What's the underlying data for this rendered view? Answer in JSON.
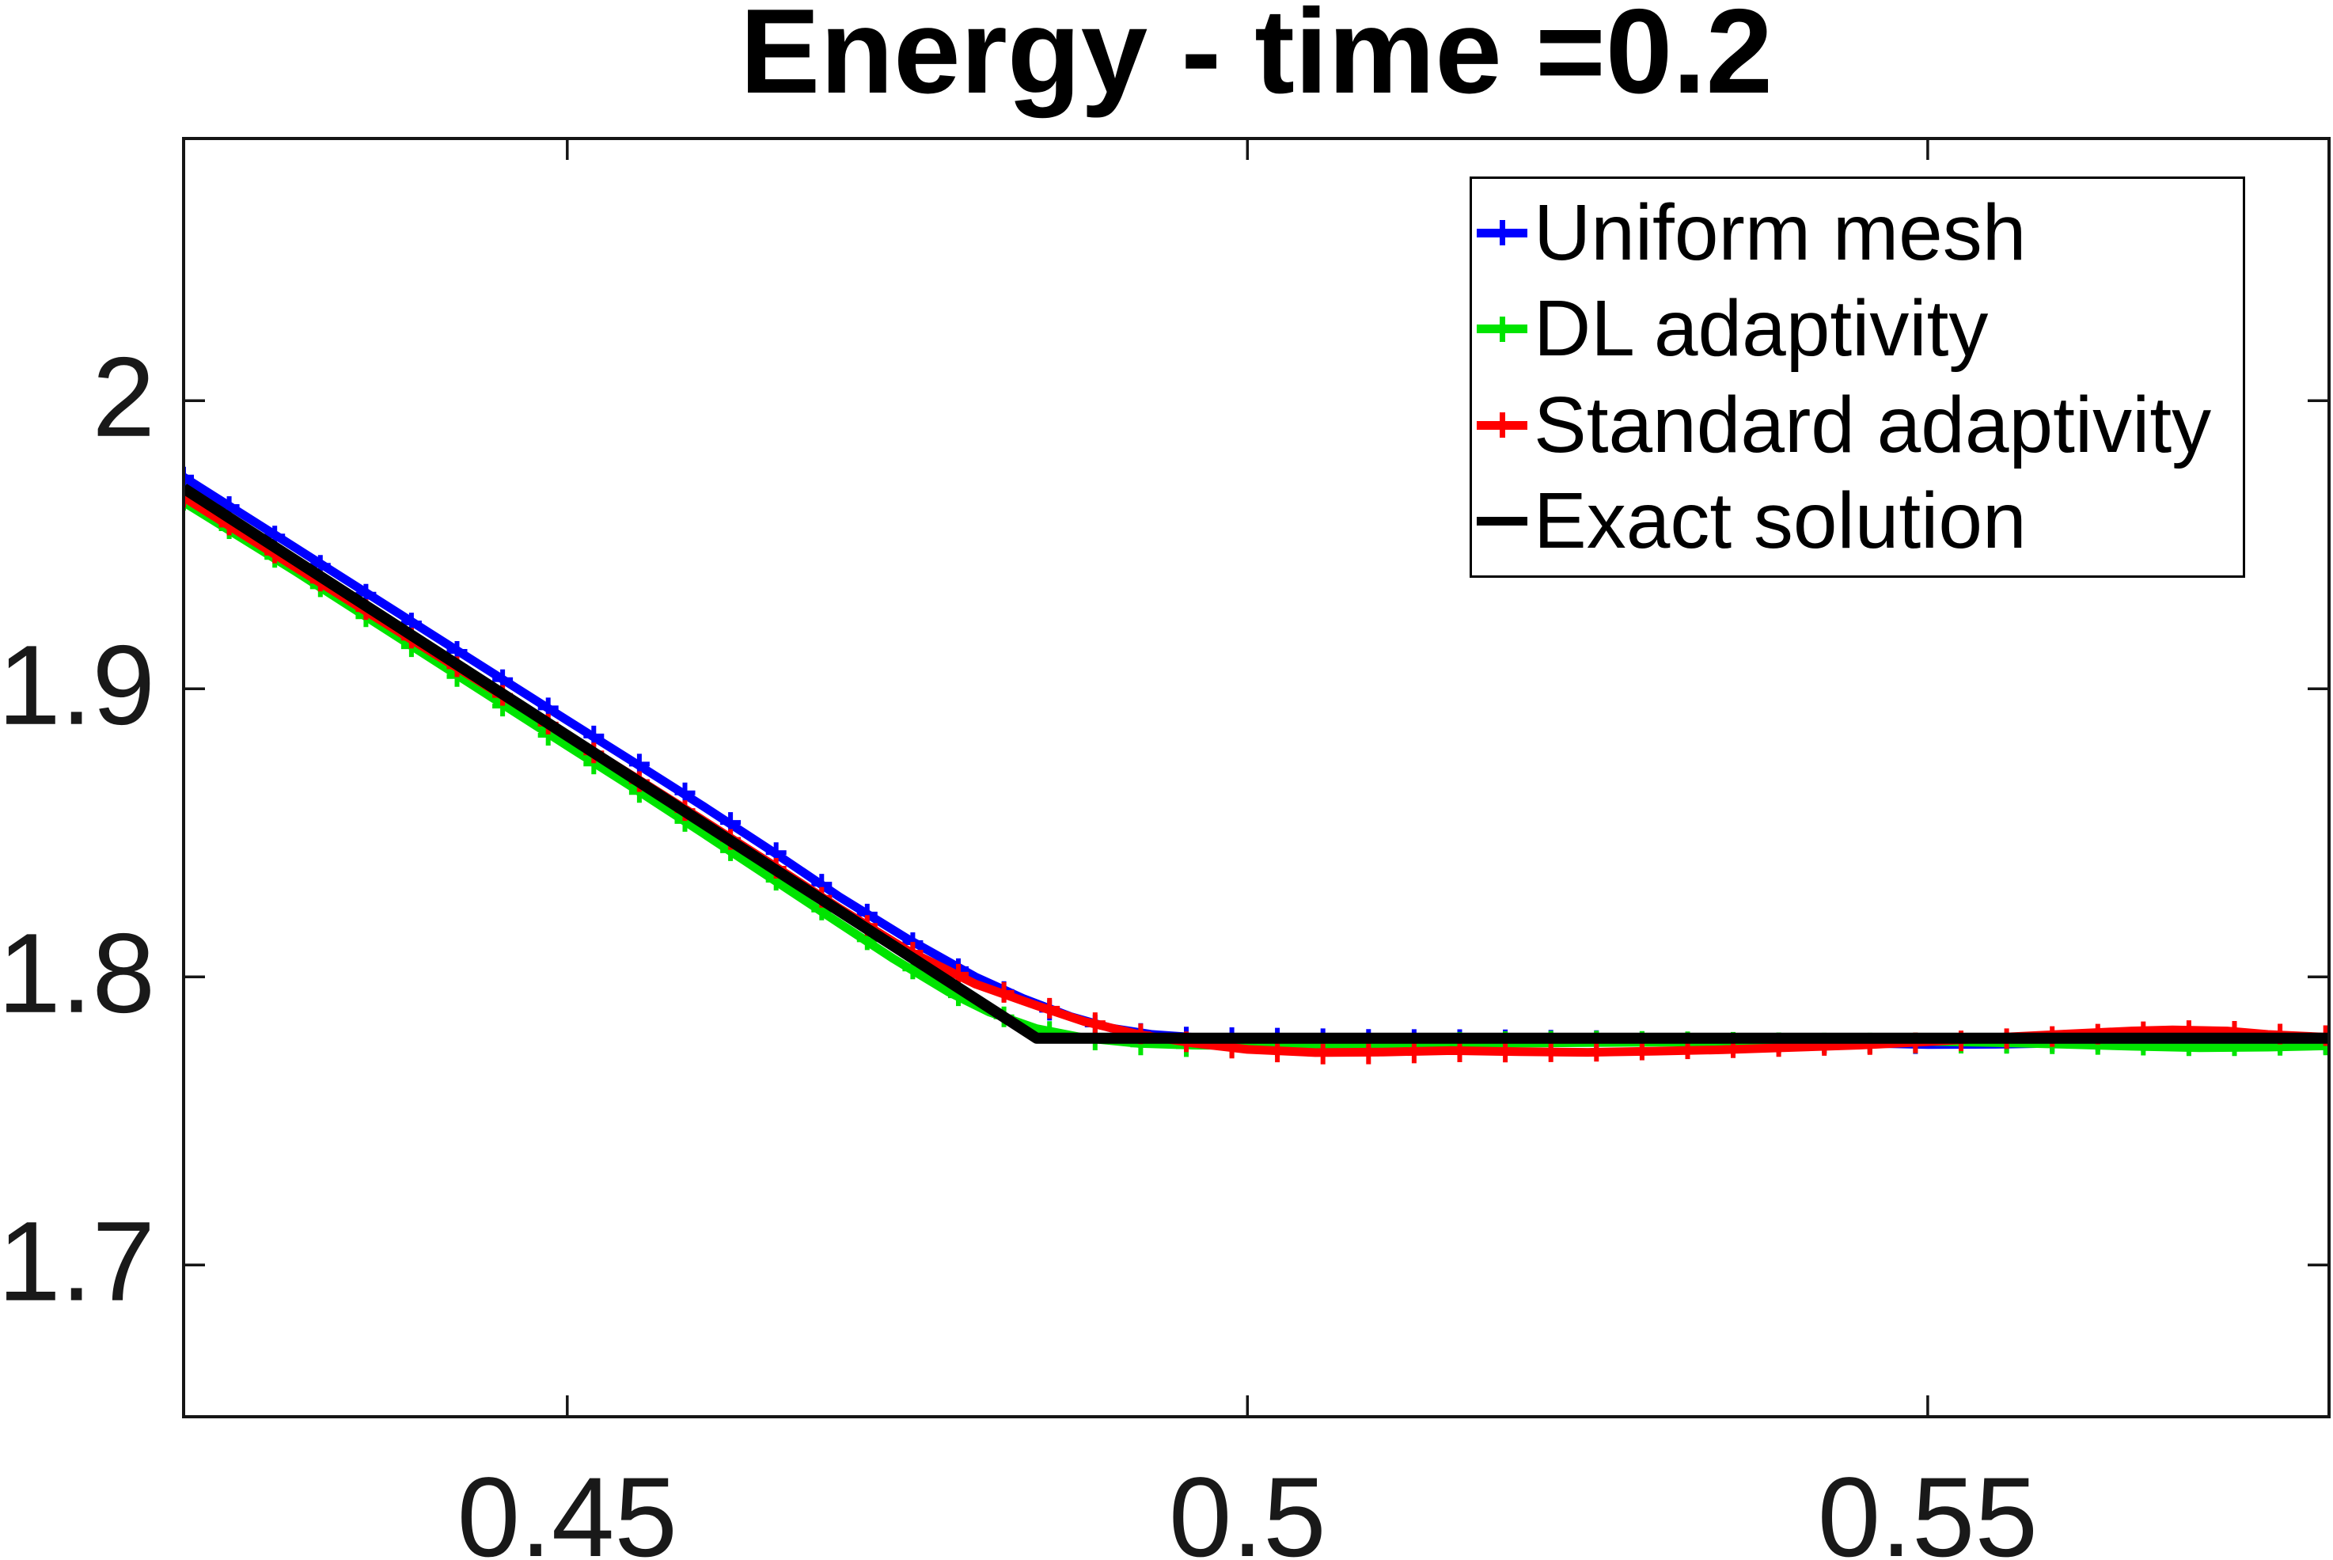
{
  "title": "Energy - time =0.2",
  "legend": {
    "entries": [
      {
        "label": "Uniform mesh",
        "color": "#0000ff",
        "marker": "plus"
      },
      {
        "label": "DL adaptivity",
        "color": "#00e400",
        "marker": "plus"
      },
      {
        "label": "Standard adaptivity",
        "color": "#ff0000",
        "marker": "plus"
      },
      {
        "label": "Exact solution",
        "color": "#000000",
        "marker": "none"
      }
    ]
  },
  "chart_data": {
    "type": "line",
    "title": "Energy - time =0.2",
    "xlabel": "",
    "ylabel": "",
    "xlim": [
      0.4218,
      0.5795
    ],
    "ylim": [
      1.6473,
      2.091
    ],
    "xticks": [
      0.45,
      0.5,
      0.55
    ],
    "xtick_labels": [
      "0.45",
      "0.5",
      "0.55"
    ],
    "yticks": [
      1.7,
      1.8,
      1.9,
      2.0
    ],
    "ytick_labels": [
      "1.7",
      "1.8",
      "1.9",
      "2"
    ],
    "grid": false,
    "box": true,
    "legend_position": "top-right",
    "axis_color": "#151515",
    "series": [
      {
        "name": "Uniform mesh",
        "color": "#0000ff",
        "marker": "plus",
        "line_width": 11,
        "points": [
          [
            0.4218,
            1.9735
          ],
          [
            0.43,
            1.949
          ],
          [
            0.44,
            1.919
          ],
          [
            0.45,
            1.889
          ],
          [
            0.455,
            1.8742
          ],
          [
            0.46,
            1.8592
          ],
          [
            0.465,
            1.8438
          ],
          [
            0.47,
            1.8278
          ],
          [
            0.475,
            1.8132
          ],
          [
            0.48,
            1.8
          ],
          [
            0.4835,
            1.7925
          ],
          [
            0.487,
            1.7862
          ],
          [
            0.49,
            1.7822
          ],
          [
            0.493,
            1.78
          ],
          [
            0.496,
            1.779
          ],
          [
            0.5,
            1.7786
          ],
          [
            0.505,
            1.778
          ],
          [
            0.51,
            1.7776
          ],
          [
            0.515,
            1.7778
          ],
          [
            0.52,
            1.778
          ],
          [
            0.525,
            1.7782
          ],
          [
            0.53,
            1.778
          ],
          [
            0.535,
            1.7777
          ],
          [
            0.54,
            1.7775
          ],
          [
            0.545,
            1.777
          ],
          [
            0.55,
            1.7765
          ],
          [
            0.555,
            1.7766
          ],
          [
            0.56,
            1.777
          ],
          [
            0.565,
            1.7773
          ],
          [
            0.57,
            1.7776
          ],
          [
            0.575,
            1.7775
          ],
          [
            0.5795,
            1.7773
          ]
        ]
      },
      {
        "name": "DL adaptivity",
        "color": "#00e400",
        "marker": "plus",
        "line_width": 11,
        "points": [
          [
            0.4218,
            1.9648
          ],
          [
            0.43,
            1.9408
          ],
          [
            0.44,
            1.9105
          ],
          [
            0.45,
            1.8802
          ],
          [
            0.455,
            1.8652
          ],
          [
            0.46,
            1.8498
          ],
          [
            0.465,
            1.8342
          ],
          [
            0.47,
            1.8186
          ],
          [
            0.474,
            1.8062
          ],
          [
            0.478,
            1.7948
          ],
          [
            0.481,
            1.7878
          ],
          [
            0.4845,
            1.782
          ],
          [
            0.488,
            1.7788
          ],
          [
            0.492,
            1.7769
          ],
          [
            0.496,
            1.7763
          ],
          [
            0.5,
            1.7762
          ],
          [
            0.505,
            1.7764
          ],
          [
            0.51,
            1.7766
          ],
          [
            0.515,
            1.7768
          ],
          [
            0.52,
            1.777
          ],
          [
            0.525,
            1.7772
          ],
          [
            0.53,
            1.7773
          ],
          [
            0.535,
            1.7774
          ],
          [
            0.54,
            1.7775
          ],
          [
            0.545,
            1.7776
          ],
          [
            0.55,
            1.7776
          ],
          [
            0.555,
            1.7772
          ],
          [
            0.56,
            1.7766
          ],
          [
            0.565,
            1.7759
          ],
          [
            0.57,
            1.7754
          ],
          [
            0.575,
            1.7756
          ],
          [
            0.5795,
            1.7761
          ]
        ]
      },
      {
        "name": "Standard adaptivity",
        "color": "#ff0000",
        "marker": "plus",
        "line_width": 11,
        "points": [
          [
            0.4218,
            1.9665
          ],
          [
            0.43,
            1.9422
          ],
          [
            0.44,
            1.9128
          ],
          [
            0.45,
            1.8838
          ],
          [
            0.455,
            1.8692
          ],
          [
            0.46,
            1.8543
          ],
          [
            0.465,
            1.8392
          ],
          [
            0.47,
            1.8238
          ],
          [
            0.475,
            1.8092
          ],
          [
            0.48,
            1.7975
          ],
          [
            0.4845,
            1.79
          ],
          [
            0.488,
            1.7845
          ],
          [
            0.492,
            1.78
          ],
          [
            0.496,
            1.777
          ],
          [
            0.5,
            1.7748
          ],
          [
            0.505,
            1.7737
          ],
          [
            0.51,
            1.7739
          ],
          [
            0.515,
            1.7744
          ],
          [
            0.52,
            1.774
          ],
          [
            0.525,
            1.7738
          ],
          [
            0.53,
            1.7742
          ],
          [
            0.535,
            1.7747
          ],
          [
            0.54,
            1.7755
          ],
          [
            0.545,
            1.7763
          ],
          [
            0.55,
            1.7775
          ],
          [
            0.555,
            1.7789
          ],
          [
            0.56,
            1.7801
          ],
          [
            0.565,
            1.7812
          ],
          [
            0.568,
            1.7816
          ],
          [
            0.572,
            1.7812
          ],
          [
            0.575,
            1.78
          ],
          [
            0.5795,
            1.779
          ]
        ]
      },
      {
        "name": "Exact solution",
        "color": "#000000",
        "marker": "none",
        "line_width": 14,
        "points": [
          [
            0.4218,
            1.9696
          ],
          [
            0.4845,
            1.7787
          ],
          [
            0.5795,
            1.7787
          ]
        ]
      }
    ]
  }
}
